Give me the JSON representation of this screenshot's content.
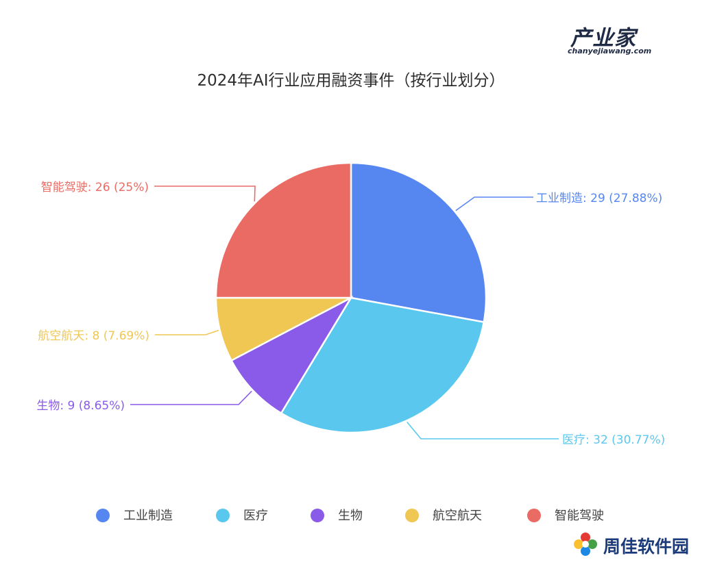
{
  "logo": {
    "main": "产业家",
    "sub": "chanyejiawang.com"
  },
  "watermark": {
    "text": "周佳软件园"
  },
  "chart_data": {
    "type": "pie",
    "title": "2024年AI行业应用融资事件（按行业划分）",
    "legend_position": "bottom",
    "slices": [
      {
        "name": "工业制造",
        "value": 29,
        "percent": "27.88%",
        "label": "工业制造: 29 (27.88%)",
        "color": "#5687f0"
      },
      {
        "name": "医疗",
        "value": 32,
        "percent": "30.77%",
        "label": "医疗: 32 (30.77%)",
        "color": "#5ac8ee"
      },
      {
        "name": "生物",
        "value": 9,
        "percent": "8.65%",
        "label": "生物: 9 (8.65%)",
        "color": "#8a5ae8"
      },
      {
        "name": "航空航天",
        "value": 8,
        "percent": "7.69%",
        "label": "航空航天: 8 (7.69%)",
        "color": "#efc752"
      },
      {
        "name": "智能驾驶",
        "value": 26,
        "percent": "25%",
        "label": "智能驾驶: 26 (25%)",
        "color": "#ea6b63"
      }
    ]
  }
}
